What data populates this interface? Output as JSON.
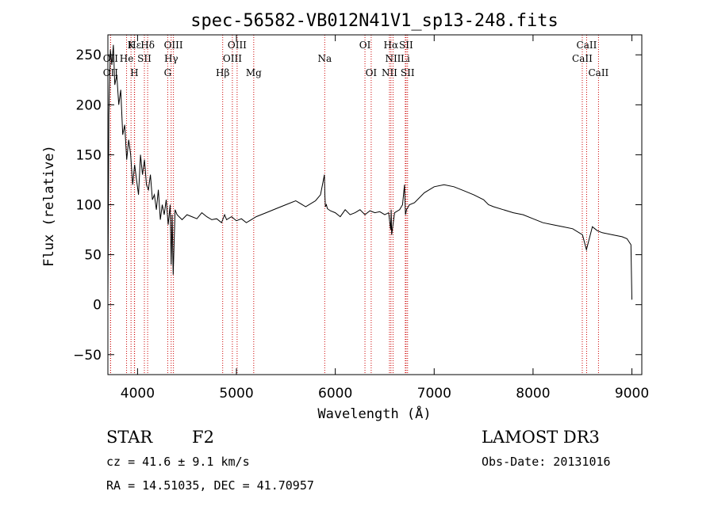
{
  "chart_data": {
    "type": "line",
    "title": "spec-56582-VB012N41V1_sp13-248.fits",
    "xlabel": "Wavelength (Å)",
    "ylabel": "Flux (relative)",
    "xlim": [
      3700,
      9100
    ],
    "ylim": [
      -70,
      270
    ],
    "xticks": [
      4000,
      5000,
      6000,
      7000,
      8000,
      9000
    ],
    "yticks": [
      -50,
      0,
      50,
      100,
      150,
      200,
      250
    ],
    "grid": false,
    "line_color": "#000000",
    "marker_color": "#cc0000",
    "spectrum": {
      "x": [
        3700,
        3710,
        3725,
        3740,
        3755,
        3770,
        3790,
        3810,
        3830,
        3850,
        3870,
        3890,
        3910,
        3930,
        3950,
        3970,
        3990,
        4010,
        4030,
        4050,
        4070,
        4090,
        4110,
        4130,
        4150,
        4170,
        4190,
        4210,
        4230,
        4250,
        4270,
        4290,
        4310,
        4330,
        4340,
        4350,
        4360,
        4380,
        4400,
        4450,
        4500,
        4550,
        4600,
        4650,
        4700,
        4750,
        4800,
        4850,
        4880,
        4900,
        4950,
        5000,
        5050,
        5100,
        5150,
        5200,
        5300,
        5400,
        5500,
        5600,
        5700,
        5800,
        5850,
        5880,
        5890,
        5895,
        5900,
        5910,
        5920,
        5950,
        6000,
        6050,
        6100,
        6150,
        6200,
        6250,
        6300,
        6350,
        6400,
        6450,
        6500,
        6540,
        6560,
        6565,
        6570,
        6600,
        6650,
        6680,
        6700,
        6710,
        6720,
        6750,
        6800,
        6900,
        7000,
        7100,
        7200,
        7300,
        7400,
        7500,
        7550,
        7600,
        7700,
        7800,
        7900,
        8000,
        8100,
        8200,
        8300,
        8400,
        8500,
        8540,
        8600,
        8650,
        8700,
        8800,
        8900,
        8950,
        8990,
        9000
      ],
      "y": [
        5,
        190,
        255,
        240,
        260,
        220,
        230,
        200,
        215,
        170,
        180,
        145,
        165,
        150,
        120,
        140,
        125,
        110,
        150,
        130,
        145,
        120,
        115,
        130,
        105,
        110,
        95,
        115,
        85,
        100,
        90,
        105,
        80,
        100,
        40,
        90,
        30,
        95,
        90,
        85,
        90,
        88,
        86,
        92,
        88,
        85,
        86,
        82,
        90,
        85,
        88,
        84,
        86,
        82,
        85,
        88,
        92,
        96,
        100,
        104,
        98,
        104,
        110,
        125,
        130,
        108,
        98,
        100,
        96,
        94,
        92,
        88,
        95,
        90,
        92,
        95,
        90,
        94,
        92,
        93,
        90,
        92,
        75,
        95,
        70,
        92,
        95,
        100,
        120,
        90,
        95,
        100,
        102,
        112,
        118,
        120,
        118,
        114,
        110,
        105,
        100,
        98,
        95,
        92,
        90,
        86,
        82,
        80,
        78,
        76,
        70,
        55,
        78,
        74,
        72,
        70,
        68,
        66,
        60,
        5
      ]
    },
    "line_markers": [
      {
        "label": "Hε",
        "x": 3970,
        "row": 0
      },
      {
        "label": "K",
        "x": 3934,
        "row": 0
      },
      {
        "label": "Hδ",
        "x": 4102,
        "row": 0
      },
      {
        "label": "OIII",
        "x": 4363,
        "row": 0
      },
      {
        "label": "OIII",
        "x": 5007,
        "row": 0
      },
      {
        "label": "OI",
        "x": 6300,
        "row": 0
      },
      {
        "label": "Hα",
        "x": 6563,
        "row": 0
      },
      {
        "label": "SII",
        "x": 6716,
        "row": 0
      },
      {
        "label": "CaII",
        "x": 8542,
        "row": 0
      },
      {
        "label": "OII",
        "x": 3727,
        "row": 1
      },
      {
        "label": "He",
        "x": 3889,
        "row": 1
      },
      {
        "label": "SII",
        "x": 4069,
        "row": 1
      },
      {
        "label": "Hγ",
        "x": 4340,
        "row": 1
      },
      {
        "label": "OIII",
        "x": 4959,
        "row": 1
      },
      {
        "label": "Na",
        "x": 5893,
        "row": 1
      },
      {
        "label": "NII",
        "x": 6584,
        "row": 1
      },
      {
        "label": "Li",
        "x": 6708,
        "row": 1
      },
      {
        "label": "CaII",
        "x": 8498,
        "row": 1
      },
      {
        "label": "OII",
        "x": 3727,
        "row": 2
      },
      {
        "label": "H",
        "x": 3968,
        "row": 2
      },
      {
        "label": "G",
        "x": 4305,
        "row": 2
      },
      {
        "label": "Hβ",
        "x": 4861,
        "row": 2
      },
      {
        "label": "Mg",
        "x": 5175,
        "row": 2
      },
      {
        "label": "OI",
        "x": 6363,
        "row": 2
      },
      {
        "label": "NII",
        "x": 6548,
        "row": 2
      },
      {
        "label": "SII",
        "x": 6731,
        "row": 2
      },
      {
        "label": "CaII",
        "x": 8662,
        "row": 2
      }
    ]
  },
  "info": {
    "class_label": "STAR",
    "subclass": "F2",
    "survey": "LAMOST DR3",
    "cz": "cz = 41.6 ± 9.1 km/s",
    "obs_date": "Obs-Date: 20131016",
    "coords": "RA =  14.51035, DEC =  41.70957"
  }
}
